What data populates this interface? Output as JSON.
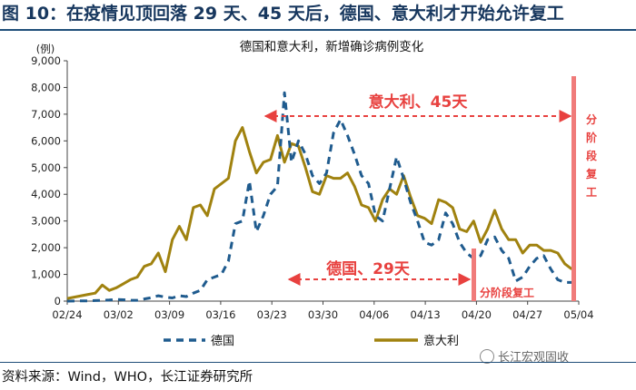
{
  "figure_title": "图 10：在疫情见顶回落 29 天、45 天后，德国、意大利才开始允许复工",
  "source": "资料来源：Wind，WHO，长江证券研究所",
  "watermark": "长江宏观固收",
  "colors": {
    "germany": "#1f5b8e",
    "italy": "#a0820f",
    "annotation": "#e8413f",
    "title": "#17375e"
  },
  "chart_data": {
    "type": "line",
    "title": "德国和意大利，新增确诊病例变化",
    "ylabel_unit": "(例)",
    "ylim": [
      0,
      9000
    ],
    "yticks": [
      0,
      1000,
      2000,
      3000,
      4000,
      5000,
      6000,
      7000,
      8000,
      9000
    ],
    "ytick_labels": [
      "0",
      "1,000",
      "2,000",
      "3,000",
      "4,000",
      "5,000",
      "6,000",
      "7,000",
      "8,000",
      "9,000"
    ],
    "x_labels": [
      "02/24",
      "03/02",
      "03/09",
      "03/16",
      "03/23",
      "03/30",
      "04/06",
      "04/13",
      "04/20",
      "04/27",
      "05/04"
    ],
    "series": [
      {
        "name": "德国",
        "style": "dashed",
        "values": [
          0,
          5,
          10,
          10,
          20,
          30,
          40,
          60,
          50,
          30,
          30,
          80,
          130,
          200,
          150,
          120,
          200,
          170,
          300,
          400,
          800,
          900,
          1000,
          1500,
          2900,
          3000,
          4500,
          2600,
          3200,
          4000,
          4300,
          7800,
          5200,
          6000,
          5500,
          4700,
          4400,
          4800,
          6300,
          6800,
          6200,
          5500,
          4700,
          4400,
          3200,
          3000,
          4200,
          5400,
          4600,
          3700,
          3000,
          2200,
          2100,
          2300,
          3300,
          2900,
          2200,
          1800,
          1600,
          1700,
          2300,
          2400,
          1900,
          1600,
          750,
          900,
          1300,
          1600,
          1700,
          1200,
          800,
          700,
          700,
          600
        ]
      },
      {
        "name": "意大利",
        "style": "solid",
        "values": [
          100,
          150,
          200,
          250,
          300,
          600,
          400,
          500,
          650,
          800,
          900,
          1300,
          1400,
          1800,
          1100,
          2300,
          2800,
          2300,
          3500,
          3600,
          3200,
          4200,
          4400,
          4600,
          6000,
          6500,
          5600,
          4800,
          5200,
          5300,
          6200,
          5200,
          5900,
          5800,
          5000,
          4100,
          4000,
          4700,
          4600,
          4600,
          4800,
          4300,
          3600,
          3500,
          3000,
          3800,
          4200,
          4000,
          4700,
          3900,
          3200,
          3100,
          2900,
          3800,
          3700,
          3500,
          2700,
          2600,
          3000,
          2200,
          2700,
          3400,
          2700,
          2300,
          2300,
          1800,
          2100,
          2100,
          1900,
          1900,
          1800,
          1400,
          1200
        ]
      }
    ],
    "annotations": [
      {
        "text": "意大利、45天"
      },
      {
        "text": "德国、29天"
      },
      {
        "text": "分阶段复工"
      },
      {
        "text": "分阶段复工"
      }
    ]
  }
}
